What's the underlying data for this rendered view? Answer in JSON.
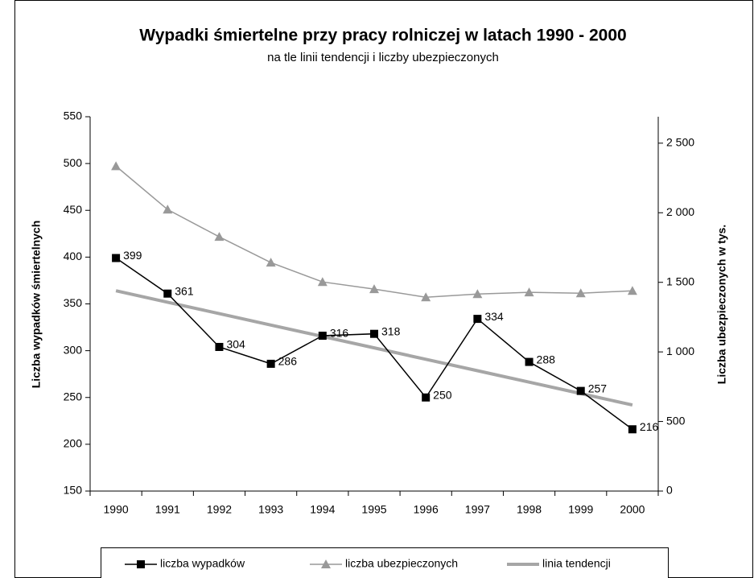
{
  "chart_data": {
    "type": "line",
    "title": "Wypadki śmiertelne przy pracy rolniczej w latach 1990 - 2000",
    "subtitle": "na tle linii tendencji i liczby ubezpieczonych",
    "y_label": "Liczba wypadków śmiertelnych",
    "y2_label": "Liczba ubezpieczonych w tys.",
    "categories": [
      "1990",
      "1991",
      "1992",
      "1993",
      "1994",
      "1995",
      "1996",
      "1997",
      "1998",
      "1999",
      "2000"
    ],
    "ylim": [
      150,
      550
    ],
    "yticks": [
      150,
      200,
      250,
      300,
      350,
      400,
      450,
      500,
      550
    ],
    "y2lim": [
      0,
      2690
    ],
    "y2ticks": [
      0,
      500,
      {
        "value": 1000,
        "label": "1 000"
      },
      {
        "value": 1500,
        "label": "1 500"
      },
      {
        "value": 2000,
        "label": "2 000"
      },
      {
        "value": 2500,
        "label": "2 500"
      }
    ],
    "legend": "bottom",
    "series": [
      {
        "name": "liczba wypadków",
        "color": "#000000",
        "marker": "square",
        "data_labels": true,
        "values": [
          399,
          361,
          304,
          286,
          316,
          318,
          250,
          334,
          288,
          257,
          216
        ]
      },
      {
        "name": "liczba ubezpieczonych",
        "color": "#999999",
        "marker": "triangle",
        "axis": "y2",
        "values": [
          2335,
          2023,
          1827,
          1642,
          1503,
          1451,
          1393,
          1416,
          1428,
          1422,
          1439
        ]
      },
      {
        "name": "linia tendencji",
        "color": "#a6a6a6",
        "marker": "none",
        "values": [
          364,
          351.8,
          339.6,
          327.4,
          315.2,
          303,
          290.8,
          278.6,
          266.4,
          254.2,
          242
        ]
      }
    ]
  }
}
